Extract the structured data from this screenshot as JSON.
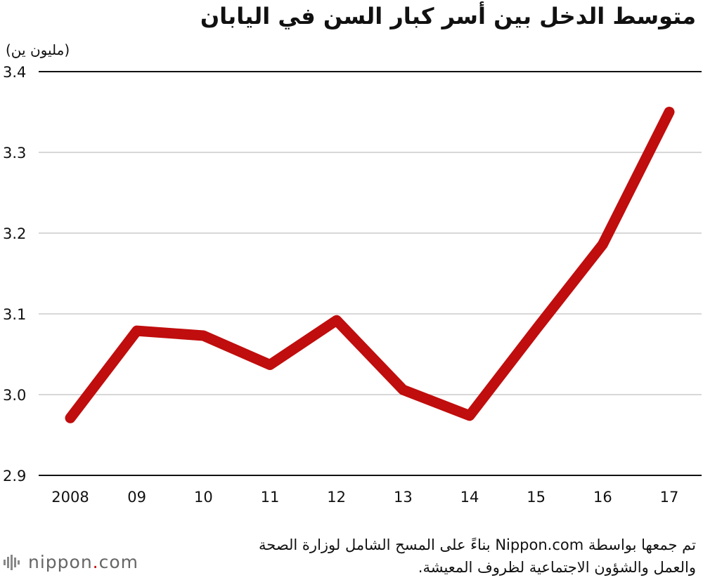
{
  "chart_data": {
    "type": "line",
    "title": "متوسط الدخل بين أسر كبار السن في اليابان",
    "unit_label": "(مليون ين)",
    "categories": [
      "2008",
      "09",
      "10",
      "11",
      "12",
      "13",
      "14",
      "15",
      "16",
      "17"
    ],
    "series": [
      {
        "values": [
          2.971,
          3.079,
          3.073,
          3.037,
          3.092,
          3.006,
          2.974,
          3.081,
          3.186,
          3.35
        ]
      }
    ],
    "y_ticks": [
      "2.9",
      "3.0",
      "3.1",
      "3.2",
      "3.3",
      "3.4"
    ],
    "ylim": [
      2.9,
      3.4
    ],
    "grid": true,
    "line_color": "#c00d0d",
    "grid_color": "#cccccc",
    "axis_color": "#111111"
  },
  "source": {
    "line1": "تم جمعها بواسطة Nippon.com بناءً على المسح الشامل لوزارة الصحة",
    "line2": "والعمل والشؤون الاجتماعية لظروف المعيشة."
  },
  "brand": {
    "name": "nippon",
    "suffix": ".com",
    "icon": "sound-wave-logo-icon",
    "accent_color": "#c00d0d"
  }
}
